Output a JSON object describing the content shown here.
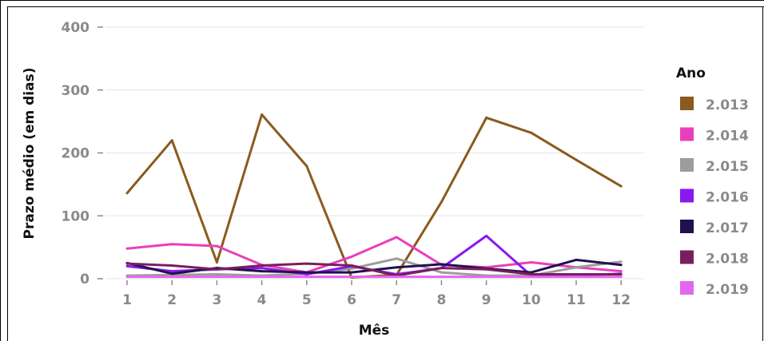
{
  "chart_data": {
    "type": "line",
    "title": "",
    "xlabel": "Mês",
    "ylabel": "Prazo médio (em dias)",
    "x": [
      1,
      2,
      3,
      4,
      5,
      6,
      7,
      8,
      9,
      10,
      11,
      12
    ],
    "ylim": [
      0,
      400
    ],
    "yticks": [
      0,
      100,
      200,
      300,
      400
    ],
    "grid": true,
    "legend_title": "Ano",
    "legend_position": "right",
    "series": [
      {
        "name": "2.013",
        "color": "#8b5a1e",
        "values": [
          136,
          220,
          26,
          261,
          179,
          2,
          6,
          122,
          256,
          232,
          189,
          147
        ]
      },
      {
        "name": "2.014",
        "color": "#e83fbd",
        "values": [
          48,
          55,
          52,
          22,
          10,
          35,
          66,
          22,
          18,
          26,
          18,
          12
        ]
      },
      {
        "name": "2.015",
        "color": "#9c9c9c",
        "values": [
          5,
          6,
          7,
          5,
          8,
          16,
          32,
          10,
          5,
          5,
          18,
          27
        ]
      },
      {
        "name": "2.016",
        "color": "#8a18f0",
        "values": [
          20,
          12,
          15,
          17,
          7,
          20,
          7,
          17,
          68,
          5,
          5,
          8
        ]
      },
      {
        "name": "2.017",
        "color": "#22104e",
        "values": [
          25,
          8,
          17,
          12,
          10,
          10,
          18,
          23,
          16,
          10,
          30,
          22
        ]
      },
      {
        "name": "2.018",
        "color": "#7a1e5f",
        "values": [
          24,
          21,
          15,
          21,
          24,
          21,
          5,
          17,
          15,
          7,
          7,
          7
        ]
      },
      {
        "name": "2.019",
        "color": "#e368f0",
        "values": [
          3,
          3,
          3,
          3,
          3,
          3,
          3,
          3,
          3,
          3,
          3,
          3
        ]
      }
    ]
  }
}
